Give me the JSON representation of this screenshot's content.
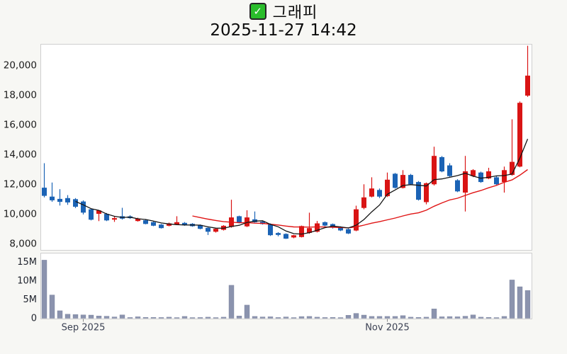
{
  "header": {
    "title": "그래피",
    "subtitle": "2025-11-27 14:42",
    "checkbox_icon": "✓",
    "checkbox_color": "#2abd2b"
  },
  "chart_data": {
    "type": "candlestick",
    "title": "그래피",
    "timestamp": "2025-11-27 14:42",
    "up_color": "#d91414",
    "down_color": "#1b63b5",
    "volume_color": "#8b93ae",
    "ma_short": {
      "period": 5,
      "color": "#141414"
    },
    "ma_long": {
      "period": 20,
      "color": "#e01414"
    },
    "price_axis": {
      "ticks": [
        8000,
        10000,
        12000,
        14000,
        16000,
        18000,
        20000
      ],
      "labels": [
        "8,000",
        "10,000",
        "12,000",
        "14,000",
        "16,000",
        "18,000",
        "20,000"
      ],
      "min": 7540,
      "max": 21400
    },
    "volume_axis": {
      "ticks": [
        0,
        5,
        10,
        15
      ],
      "labels": [
        "0",
        "5M",
        "10M",
        "15M"
      ],
      "unit": "millions"
    },
    "x_ticks": [
      {
        "index": 5,
        "label": "Sep 2025"
      },
      {
        "index": 44,
        "label": "Nov 2025"
      }
    ],
    "columns": [
      "open",
      "high",
      "low",
      "close",
      "volume_millions"
    ],
    "candles": [
      [
        11750,
        13400,
        11100,
        11200,
        15.5
      ],
      [
        11150,
        12100,
        10800,
        10900,
        6.2
      ],
      [
        11000,
        11650,
        10550,
        10800,
        2.0
      ],
      [
        11050,
        11250,
        10600,
        10760,
        1.1
      ],
      [
        10980,
        11050,
        10380,
        10470,
        1.0
      ],
      [
        10820,
        10900,
        9950,
        10070,
        0.9
      ],
      [
        10300,
        10350,
        9550,
        9600,
        0.85
      ],
      [
        9990,
        10250,
        9500,
        10220,
        0.6
      ],
      [
        9990,
        10050,
        9500,
        9550,
        0.55
      ],
      [
        9600,
        9800,
        9450,
        9700,
        0.35
      ],
      [
        9830,
        10400,
        9600,
        9670,
        0.9
      ],
      [
        9820,
        9900,
        9650,
        9700,
        0.2
      ],
      [
        9510,
        9730,
        9470,
        9670,
        0.4
      ],
      [
        9560,
        9640,
        9290,
        9310,
        0.25
      ],
      [
        9430,
        9470,
        9160,
        9190,
        0.25
      ],
      [
        9270,
        9310,
        9000,
        9030,
        0.2
      ],
      [
        9190,
        9400,
        9150,
        9350,
        0.3
      ],
      [
        9270,
        9830,
        9240,
        9430,
        0.15
      ],
      [
        9385,
        9440,
        9190,
        9225,
        0.5
      ],
      [
        9320,
        9370,
        9120,
        9160,
        0.1
      ],
      [
        9240,
        9280,
        8950,
        8985,
        0.2
      ],
      [
        9050,
        9100,
        8570,
        8790,
        0.3
      ],
      [
        8790,
        9040,
        8730,
        8990,
        0.15
      ],
      [
        8920,
        9230,
        8870,
        9190,
        0.3
      ],
      [
        9110,
        10940,
        9060,
        9750,
        8.8
      ],
      [
        9830,
        9870,
        9350,
        9390,
        0.6
      ],
      [
        9150,
        10230,
        9100,
        9750,
        3.5
      ],
      [
        9620,
        10150,
        9400,
        9430,
        0.5
      ],
      [
        9460,
        9520,
        9270,
        9305,
        0.35
      ],
      [
        9300,
        9350,
        8500,
        8550,
        0.4
      ],
      [
        8700,
        8760,
        8480,
        8570,
        0.2
      ],
      [
        8640,
        8680,
        8300,
        8320,
        0.35
      ],
      [
        8400,
        8580,
        8350,
        8550,
        0.1
      ],
      [
        8430,
        9200,
        8400,
        9170,
        0.45
      ],
      [
        8710,
        10070,
        8650,
        9030,
        0.5
      ],
      [
        8790,
        9510,
        8740,
        9350,
        0.3
      ],
      [
        9430,
        9480,
        9150,
        9200,
        0.2
      ],
      [
        9300,
        9340,
        9000,
        9100,
        0.25
      ],
      [
        9110,
        9150,
        8830,
        8870,
        0.1
      ],
      [
        8960,
        9000,
        8630,
        8670,
        0.8
      ],
      [
        8870,
        10540,
        8820,
        10300,
        1.3
      ],
      [
        10390,
        11980,
        10300,
        11100,
        0.85
      ],
      [
        11150,
        12450,
        11100,
        11700,
        0.5
      ],
      [
        11600,
        11700,
        11050,
        11150,
        0.5
      ],
      [
        11180,
        12770,
        11120,
        12290,
        0.5
      ],
      [
        12690,
        12740,
        11690,
        11740,
        0.5
      ],
      [
        11740,
        12930,
        11700,
        12610,
        0.7
      ],
      [
        12610,
        12680,
        11920,
        11980,
        0.3
      ],
      [
        12130,
        12200,
        10890,
        10940,
        0.25
      ],
      [
        10780,
        12100,
        10630,
        12050,
        0.3
      ],
      [
        11980,
        14510,
        11900,
        13890,
        2.5
      ],
      [
        13810,
        13880,
        12790,
        12850,
        0.4
      ],
      [
        13250,
        13400,
        12480,
        12530,
        0.45
      ],
      [
        12250,
        12320,
        11450,
        11500,
        0.4
      ],
      [
        11420,
        13890,
        10150,
        12850,
        0.55
      ],
      [
        12530,
        13000,
        12460,
        12930,
        0.9
      ],
      [
        12770,
        12830,
        12080,
        12130,
        0.3
      ],
      [
        12370,
        13090,
        12320,
        12850,
        0.25
      ],
      [
        12450,
        12520,
        11930,
        11980,
        0.15
      ],
      [
        12130,
        13170,
        11420,
        12930,
        0.5
      ],
      [
        12610,
        16350,
        12560,
        13490,
        10.2
      ],
      [
        13170,
        17550,
        13120,
        17460,
        8.4
      ],
      [
        17940,
        21300,
        17860,
        19290,
        7.4
      ]
    ]
  }
}
